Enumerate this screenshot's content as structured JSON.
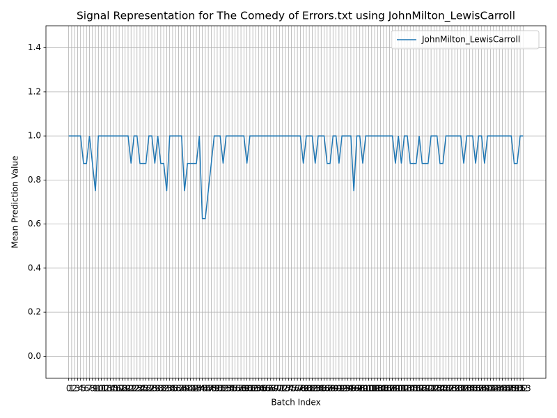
{
  "chart_data": {
    "type": "line",
    "title": "Signal Representation for The Comedy of Errors.txt using JohnMilton_LewisCarroll",
    "x_label": "Batch Index",
    "y_label": "Mean Prediction Value",
    "x": [
      0,
      1,
      2,
      3,
      4,
      5,
      6,
      7,
      8,
      9,
      10,
      11,
      12,
      13,
      14,
      15,
      16,
      17,
      18,
      19,
      20,
      21,
      22,
      23,
      24,
      25,
      26,
      27,
      28,
      29,
      30,
      31,
      32,
      33,
      34,
      35,
      36,
      37,
      38,
      39,
      40,
      41,
      42,
      43,
      44,
      45,
      46,
      47,
      48,
      49,
      50,
      51,
      52,
      53,
      54,
      55,
      56,
      57,
      58,
      59,
      60,
      61,
      62,
      63,
      64,
      65,
      66,
      67,
      68,
      69,
      70,
      71,
      72,
      73,
      74,
      75,
      76,
      77,
      78,
      79,
      80,
      81,
      82,
      83,
      84,
      85,
      86,
      87,
      88,
      89,
      90,
      91,
      92,
      93,
      94,
      95,
      96,
      97,
      98,
      99,
      100,
      101,
      102,
      103,
      104,
      105,
      106,
      107,
      108,
      109,
      110,
      111,
      112,
      113,
      114,
      115,
      116,
      117,
      118,
      119,
      120,
      121,
      122,
      123,
      124,
      125,
      126,
      127,
      128,
      129,
      130,
      131,
      132,
      133,
      134,
      135,
      136,
      137,
      138,
      139,
      140,
      141,
      142,
      143,
      144,
      145,
      146,
      147,
      148,
      149,
      150,
      151,
      152,
      153
    ],
    "series": [
      {
        "name": "JohnMilton_LewisCarroll",
        "color": "#1f77b4",
        "values": [
          1,
          1,
          1,
          1,
          1,
          0.875,
          0.875,
          1,
          0.875,
          0.75,
          1,
          1,
          1,
          1,
          1,
          1,
          1,
          1,
          1,
          1,
          1,
          0.875,
          1,
          1,
          0.875,
          0.875,
          0.875,
          1,
          1,
          0.875,
          1,
          0.875,
          0.875,
          0.75,
          1,
          1,
          1,
          1,
          1,
          0.75,
          0.875,
          0.875,
          0.875,
          0.875,
          1,
          0.625,
          0.625,
          0.75,
          0.875,
          1,
          1,
          1,
          0.875,
          1,
          1,
          1,
          1,
          1,
          1,
          1,
          0.875,
          1,
          1,
          1,
          1,
          1,
          1,
          1,
          1,
          1,
          1,
          1,
          1,
          1,
          1,
          1,
          1,
          1,
          1,
          0.875,
          1,
          1,
          1,
          0.875,
          1,
          1,
          1,
          0.875,
          0.875,
          1,
          1,
          0.875,
          1,
          1,
          1,
          1,
          0.75,
          1,
          1,
          0.875,
          1,
          1,
          1,
          1,
          1,
          1,
          1,
          1,
          1,
          1,
          0.875,
          1,
          0.875,
          1,
          1,
          0.875,
          0.875,
          0.875,
          1,
          0.875,
          0.875,
          0.875,
          1,
          1,
          1,
          0.875,
          0.875,
          1,
          1,
          1,
          1,
          1,
          1,
          0.875,
          1,
          1,
          1,
          0.875,
          1,
          1,
          0.875,
          1,
          1,
          1,
          1,
          1,
          1,
          1,
          1,
          1,
          0.875,
          0.875,
          1,
          1
        ]
      }
    ],
    "xlim": [
      -7.65,
      160.65
    ],
    "xticks": [
      0,
      1,
      2,
      3,
      4,
      5,
      6,
      7,
      8,
      9,
      10,
      11,
      12,
      13,
      14,
      15,
      16,
      17,
      18,
      19,
      20,
      21,
      22,
      23,
      24,
      25,
      26,
      27,
      28,
      29,
      30,
      31,
      32,
      33,
      34,
      35,
      36,
      37,
      38,
      39,
      40,
      41,
      42,
      43,
      44,
      45,
      46,
      47,
      48,
      49,
      50,
      51,
      52,
      53,
      54,
      55,
      56,
      57,
      58,
      59,
      60,
      61,
      62,
      63,
      64,
      65,
      66,
      67,
      68,
      69,
      70,
      71,
      72,
      73,
      74,
      75,
      76,
      77,
      78,
      79,
      80,
      81,
      82,
      83,
      84,
      85,
      86,
      87,
      88,
      89,
      90,
      91,
      92,
      93,
      94,
      95,
      96,
      97,
      98,
      99,
      100,
      101,
      102,
      103,
      104,
      105,
      106,
      107,
      108,
      109,
      110,
      111,
      112,
      113,
      114,
      115,
      116,
      117,
      118,
      119,
      120,
      121,
      122,
      123,
      124,
      125,
      126,
      127,
      128,
      129,
      130,
      131,
      132,
      133,
      134,
      135,
      136,
      137,
      138,
      139,
      140,
      141,
      142,
      143,
      144,
      145,
      146,
      147,
      148,
      149,
      150,
      151,
      152,
      153
    ],
    "ylim": [
      -0.1,
      1.5
    ],
    "yticks": [
      {
        "value": 0,
        "label": "0.0"
      },
      {
        "value": 0.2,
        "label": "0.2"
      },
      {
        "value": 0.4,
        "label": "0.4"
      },
      {
        "value": 0.6,
        "label": "0.6"
      },
      {
        "value": 0.8,
        "label": "0.8"
      },
      {
        "value": 1,
        "label": "1.0"
      },
      {
        "value": 1.2,
        "label": "1.2"
      },
      {
        "value": 1.4,
        "label": "1.4"
      }
    ],
    "grid": true,
    "legend": "upper right"
  }
}
